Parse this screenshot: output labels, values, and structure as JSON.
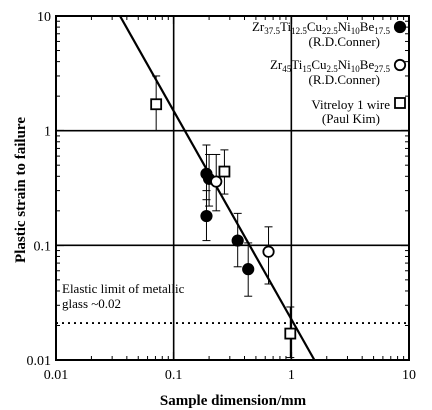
{
  "chart_data": {
    "type": "scatter",
    "title": "",
    "xlabel": "Sample dimension/mm",
    "ylabel": "Plastic strain to failure",
    "xscale": "log",
    "yscale": "log",
    "xlim": [
      0.01,
      10
    ],
    "ylim": [
      0.01,
      10
    ],
    "xticks": [
      "0.01",
      "0.1",
      "1",
      "10"
    ],
    "yticks": [
      "0.01",
      "0.1",
      "1",
      "10"
    ],
    "grid": "major gridlines at 0.1 and 1 on both axes",
    "legend_position": "top-right",
    "series": [
      {
        "name_parts": [
          {
            "t": "Zr",
            "s": false
          },
          {
            "t": "37.5",
            "s": true
          },
          {
            "t": "Ti",
            "s": false
          },
          {
            "t": "12.5",
            "s": true
          },
          {
            "t": "Cu",
            "s": false
          },
          {
            "t": "22.5",
            "s": true
          },
          {
            "t": "Ni",
            "s": false
          },
          {
            "t": "10",
            "s": true
          },
          {
            "t": "Be",
            "s": false
          },
          {
            "t": "17.5",
            "s": true
          }
        ],
        "source": "(R.D.Conner)",
        "marker": "filled-circle",
        "points": [
          {
            "x": 0.19,
            "y": 0.42,
            "ylo": 0.25,
            "yhi": 0.75
          },
          {
            "x": 0.2,
            "y": 0.38,
            "ylo": 0.22,
            "yhi": 0.62
          },
          {
            "x": 0.19,
            "y": 0.18,
            "ylo": 0.11,
            "yhi": 0.3
          },
          {
            "x": 0.35,
            "y": 0.11,
            "ylo": 0.065,
            "yhi": 0.19
          },
          {
            "x": 0.43,
            "y": 0.062,
            "ylo": 0.036,
            "yhi": 0.105
          }
        ]
      },
      {
        "name_parts": [
          {
            "t": "Zr",
            "s": false
          },
          {
            "t": "45",
            "s": true
          },
          {
            "t": "Ti",
            "s": false
          },
          {
            "t": "15",
            "s": true
          },
          {
            "t": "Cu",
            "s": false
          },
          {
            "t": "2.5",
            "s": true
          },
          {
            "t": "Ni",
            "s": false
          },
          {
            "t": "10",
            "s": true
          },
          {
            "t": "Be",
            "s": false
          },
          {
            "t": "27.5",
            "s": true
          }
        ],
        "source": "(R.D.Conner)",
        "marker": "open-circle",
        "points": [
          {
            "x": 0.23,
            "y": 0.36,
            "ylo": 0.2,
            "yhi": 0.62
          },
          {
            "x": 0.64,
            "y": 0.088,
            "ylo": 0.046,
            "yhi": 0.145
          }
        ]
      },
      {
        "name_parts": [
          {
            "t": "Vitreloy 1 wire",
            "s": false
          }
        ],
        "source": "(Paul Kim)",
        "marker": "open-square",
        "points": [
          {
            "x": 0.071,
            "y": 1.7,
            "ylo": 1.0,
            "yhi": 3.0
          },
          {
            "x": 0.27,
            "y": 0.44,
            "ylo": 0.28,
            "yhi": 0.68
          },
          {
            "x": 0.98,
            "y": 0.017,
            "ylo": 0.0105,
            "yhi": 0.029
          }
        ]
      }
    ],
    "fit_line": {
      "x": [
        0.035,
        1.57
      ],
      "y": [
        10,
        0.01
      ]
    },
    "elastic_limit": {
      "y": 0.021,
      "style": "dotted"
    },
    "annotation_lines": [
      "Elastic limit of metallic",
      "glass ~0.02"
    ]
  }
}
